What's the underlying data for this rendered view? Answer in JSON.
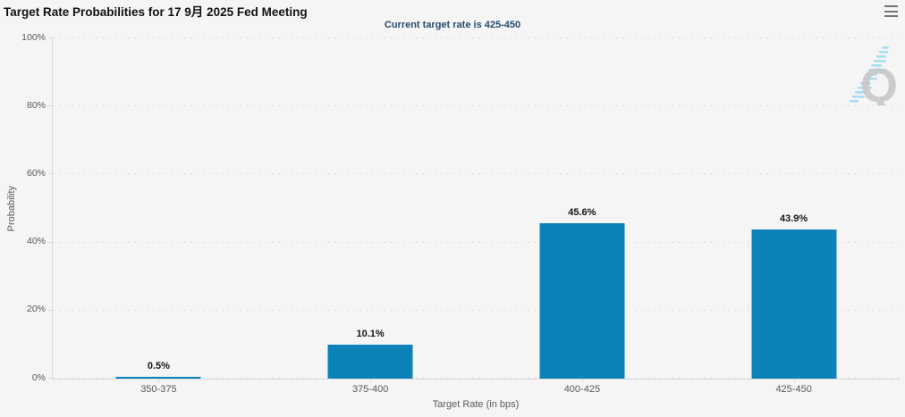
{
  "header": {
    "title": "Target Rate Probabilities for 17 9月 2025 Fed Meeting",
    "subtitle": "Current target rate is 425-450"
  },
  "chart_data": {
    "type": "bar",
    "title": "Target Rate Probabilities for 17 9月 2025 Fed Meeting",
    "subtitle": "Current target rate is 425-450",
    "categories": [
      "350-375",
      "375-400",
      "400-425",
      "425-450"
    ],
    "values": [
      0.5,
      10.1,
      45.6,
      43.9
    ],
    "value_labels": [
      "0.5%",
      "10.1%",
      "45.6%",
      "43.9%"
    ],
    "xlabel": "Target Rate (in bps)",
    "ylabel": "Probability",
    "ylim": [
      0,
      100
    ],
    "yticks": [
      0,
      20,
      40,
      60,
      80,
      100
    ],
    "ytick_labels": [
      "0%",
      "20%",
      "40%",
      "60%",
      "80%",
      "100%"
    ],
    "grid": "horizontal-dotted",
    "legend": "none",
    "bar_color": "#0d82b9"
  },
  "icons": {
    "menu": "hamburger-menu-icon",
    "watermark": "q-logo-watermark"
  },
  "colors": {
    "background": "#f5f5f6",
    "subtitle_text": "#274b6d",
    "axis_text": "#58595b",
    "bar": "#0d82b9"
  }
}
